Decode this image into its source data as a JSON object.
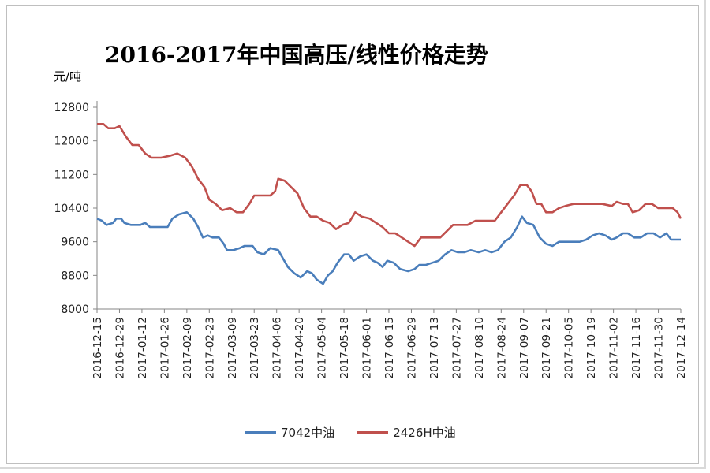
{
  "chart_data": {
    "type": "line",
    "title": "2016-2017年中国高压/线性价格走势",
    "ylabel": "元/吨",
    "ylim": [
      8000,
      12800
    ],
    "yticks": [
      8000,
      8800,
      9600,
      10400,
      11200,
      12000,
      12800
    ],
    "grid": false,
    "legend_position": "bottom",
    "x_range": [
      "2016-12-15",
      "2017-12-14"
    ],
    "xtick_labels": [
      "2016-12-15",
      "2016-12-29",
      "2017-01-12",
      "2017-01-26",
      "2017-02-09",
      "2017-02-23",
      "2017-03-09",
      "2017-03-23",
      "2017-04-06",
      "2017-04-20",
      "2017-05-04",
      "2017-05-18",
      "2017-06-01",
      "2017-06-15",
      "2017-06-29",
      "2017-07-13",
      "2017-07-27",
      "2017-08-10",
      "2017-08-24",
      "2017-09-07",
      "2017-09-21",
      "2017-10-05",
      "2017-10-19",
      "2017-11-02",
      "2017-11-16",
      "2017-11-30",
      "2017-12-14"
    ],
    "series": [
      {
        "name": "7042中油",
        "color": "#4a7ebb",
        "points": [
          [
            "2016-12-15",
            10150
          ],
          [
            "2016-12-18",
            10100
          ],
          [
            "2016-12-21",
            10000
          ],
          [
            "2016-12-25",
            10050
          ],
          [
            "2016-12-27",
            10150
          ],
          [
            "2016-12-30",
            10150
          ],
          [
            "2017-01-01",
            10050
          ],
          [
            "2017-01-05",
            10000
          ],
          [
            "2017-01-11",
            10000
          ],
          [
            "2017-01-14",
            10050
          ],
          [
            "2017-01-17",
            9950
          ],
          [
            "2017-01-20",
            9950
          ],
          [
            "2017-01-28",
            9950
          ],
          [
            "2017-01-31",
            10150
          ],
          [
            "2017-02-04",
            10250
          ],
          [
            "2017-02-09",
            10300
          ],
          [
            "2017-02-13",
            10150
          ],
          [
            "2017-02-16",
            9950
          ],
          [
            "2017-02-19",
            9700
          ],
          [
            "2017-02-22",
            9750
          ],
          [
            "2017-02-25",
            9700
          ],
          [
            "2017-03-01",
            9700
          ],
          [
            "2017-03-04",
            9550
          ],
          [
            "2017-03-06",
            9400
          ],
          [
            "2017-03-10",
            9400
          ],
          [
            "2017-03-14",
            9450
          ],
          [
            "2017-03-17",
            9500
          ],
          [
            "2017-03-22",
            9500
          ],
          [
            "2017-03-25",
            9350
          ],
          [
            "2017-03-29",
            9300
          ],
          [
            "2017-04-02",
            9450
          ],
          [
            "2017-04-07",
            9400
          ],
          [
            "2017-04-10",
            9200
          ],
          [
            "2017-04-13",
            9000
          ],
          [
            "2017-04-17",
            8850
          ],
          [
            "2017-04-21",
            8750
          ],
          [
            "2017-04-25",
            8900
          ],
          [
            "2017-04-28",
            8850
          ],
          [
            "2017-05-01",
            8700
          ],
          [
            "2017-05-05",
            8600
          ],
          [
            "2017-05-08",
            8800
          ],
          [
            "2017-05-11",
            8900
          ],
          [
            "2017-05-14",
            9100
          ],
          [
            "2017-05-18",
            9300
          ],
          [
            "2017-05-21",
            9300
          ],
          [
            "2017-05-24",
            9150
          ],
          [
            "2017-05-28",
            9250
          ],
          [
            "2017-06-01",
            9300
          ],
          [
            "2017-06-05",
            9150
          ],
          [
            "2017-06-08",
            9100
          ],
          [
            "2017-06-11",
            9000
          ],
          [
            "2017-06-14",
            9150
          ],
          [
            "2017-06-18",
            9100
          ],
          [
            "2017-06-22",
            8950
          ],
          [
            "2017-06-27",
            8900
          ],
          [
            "2017-07-01",
            8950
          ],
          [
            "2017-07-04",
            9050
          ],
          [
            "2017-07-08",
            9050
          ],
          [
            "2017-07-12",
            9100
          ],
          [
            "2017-07-16",
            9150
          ],
          [
            "2017-07-20",
            9300
          ],
          [
            "2017-07-24",
            9400
          ],
          [
            "2017-07-28",
            9350
          ],
          [
            "2017-08-01",
            9350
          ],
          [
            "2017-08-05",
            9400
          ],
          [
            "2017-08-10",
            9350
          ],
          [
            "2017-08-14",
            9400
          ],
          [
            "2017-08-18",
            9350
          ],
          [
            "2017-08-22",
            9400
          ],
          [
            "2017-08-26",
            9600
          ],
          [
            "2017-08-30",
            9700
          ],
          [
            "2017-09-03",
            9950
          ],
          [
            "2017-09-06",
            10200
          ],
          [
            "2017-09-09",
            10050
          ],
          [
            "2017-09-13",
            10000
          ],
          [
            "2017-09-17",
            9700
          ],
          [
            "2017-09-21",
            9550
          ],
          [
            "2017-09-25",
            9500
          ],
          [
            "2017-09-29",
            9600
          ],
          [
            "2017-10-05",
            9600
          ],
          [
            "2017-10-12",
            9600
          ],
          [
            "2017-10-16",
            9650
          ],
          [
            "2017-10-20",
            9750
          ],
          [
            "2017-10-24",
            9800
          ],
          [
            "2017-10-28",
            9750
          ],
          [
            "2017-11-01",
            9650
          ],
          [
            "2017-11-04",
            9700
          ],
          [
            "2017-11-08",
            9800
          ],
          [
            "2017-11-11",
            9800
          ],
          [
            "2017-11-15",
            9700
          ],
          [
            "2017-11-19",
            9700
          ],
          [
            "2017-11-23",
            9800
          ],
          [
            "2017-11-27",
            9800
          ],
          [
            "2017-12-01",
            9700
          ],
          [
            "2017-12-05",
            9800
          ],
          [
            "2017-12-08",
            9650
          ],
          [
            "2017-12-14",
            9650
          ]
        ]
      },
      {
        "name": "2426H中油",
        "color": "#c0504d",
        "points": [
          [
            "2016-12-15",
            12400
          ],
          [
            "2016-12-19",
            12400
          ],
          [
            "2016-12-22",
            12300
          ],
          [
            "2016-12-26",
            12300
          ],
          [
            "2016-12-29",
            12350
          ],
          [
            "2017-01-02",
            12100
          ],
          [
            "2017-01-06",
            11900
          ],
          [
            "2017-01-10",
            11900
          ],
          [
            "2017-01-14",
            11700
          ],
          [
            "2017-01-18",
            11600
          ],
          [
            "2017-01-24",
            11600
          ],
          [
            "2017-01-30",
            11650
          ],
          [
            "2017-02-03",
            11700
          ],
          [
            "2017-02-08",
            11600
          ],
          [
            "2017-02-12",
            11400
          ],
          [
            "2017-02-16",
            11100
          ],
          [
            "2017-02-20",
            10900
          ],
          [
            "2017-02-23",
            10600
          ],
          [
            "2017-02-27",
            10500
          ],
          [
            "2017-03-03",
            10350
          ],
          [
            "2017-03-08",
            10400
          ],
          [
            "2017-03-12",
            10300
          ],
          [
            "2017-03-16",
            10300
          ],
          [
            "2017-03-20",
            10500
          ],
          [
            "2017-03-23",
            10700
          ],
          [
            "2017-03-28",
            10700
          ],
          [
            "2017-04-02",
            10700
          ],
          [
            "2017-04-05",
            10800
          ],
          [
            "2017-04-07",
            11100
          ],
          [
            "2017-04-11",
            11050
          ],
          [
            "2017-04-15",
            10900
          ],
          [
            "2017-04-19",
            10750
          ],
          [
            "2017-04-23",
            10400
          ],
          [
            "2017-04-27",
            10200
          ],
          [
            "2017-05-01",
            10200
          ],
          [
            "2017-05-05",
            10100
          ],
          [
            "2017-05-09",
            10050
          ],
          [
            "2017-05-13",
            9900
          ],
          [
            "2017-05-17",
            10000
          ],
          [
            "2017-05-21",
            10050
          ],
          [
            "2017-05-25",
            10300
          ],
          [
            "2017-05-29",
            10200
          ],
          [
            "2017-06-03",
            10150
          ],
          [
            "2017-06-07",
            10050
          ],
          [
            "2017-06-11",
            9950
          ],
          [
            "2017-06-15",
            9800
          ],
          [
            "2017-06-19",
            9800
          ],
          [
            "2017-06-23",
            9700
          ],
          [
            "2017-06-27",
            9600
          ],
          [
            "2017-07-01",
            9500
          ],
          [
            "2017-07-05",
            9700
          ],
          [
            "2017-07-09",
            9700
          ],
          [
            "2017-07-13",
            9700
          ],
          [
            "2017-07-17",
            9700
          ],
          [
            "2017-07-21",
            9850
          ],
          [
            "2017-07-25",
            10000
          ],
          [
            "2017-07-29",
            10000
          ],
          [
            "2017-08-03",
            10000
          ],
          [
            "2017-08-08",
            10100
          ],
          [
            "2017-08-14",
            10100
          ],
          [
            "2017-08-20",
            10100
          ],
          [
            "2017-08-24",
            10300
          ],
          [
            "2017-08-28",
            10500
          ],
          [
            "2017-09-01",
            10700
          ],
          [
            "2017-09-05",
            10950
          ],
          [
            "2017-09-09",
            10950
          ],
          [
            "2017-09-12",
            10800
          ],
          [
            "2017-09-15",
            10500
          ],
          [
            "2017-09-18",
            10500
          ],
          [
            "2017-09-21",
            10300
          ],
          [
            "2017-09-25",
            10300
          ],
          [
            "2017-09-29",
            10400
          ],
          [
            "2017-10-03",
            10450
          ],
          [
            "2017-10-08",
            10500
          ],
          [
            "2017-10-14",
            10500
          ],
          [
            "2017-10-20",
            10500
          ],
          [
            "2017-10-26",
            10500
          ],
          [
            "2017-11-01",
            10450
          ],
          [
            "2017-11-04",
            10550
          ],
          [
            "2017-11-08",
            10500
          ],
          [
            "2017-11-11",
            10500
          ],
          [
            "2017-11-14",
            10300
          ],
          [
            "2017-11-18",
            10350
          ],
          [
            "2017-11-22",
            10500
          ],
          [
            "2017-11-26",
            10500
          ],
          [
            "2017-11-30",
            10400
          ],
          [
            "2017-12-05",
            10400
          ],
          [
            "2017-12-09",
            10400
          ],
          [
            "2017-12-12",
            10300
          ],
          [
            "2017-12-14",
            10150
          ]
        ]
      }
    ]
  }
}
